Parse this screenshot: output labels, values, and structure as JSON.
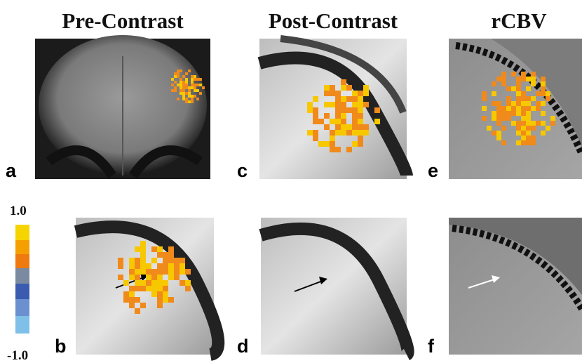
{
  "columns": {
    "0": "Pre-Contrast",
    "1": "Post-Contrast",
    "2": "rCBV"
  },
  "panels": {
    "a": "a",
    "b": "b",
    "c": "c",
    "d": "d",
    "e": "e",
    "f": "f"
  },
  "colorbar": {
    "max": "1.0",
    "min": "-1.0"
  }
}
